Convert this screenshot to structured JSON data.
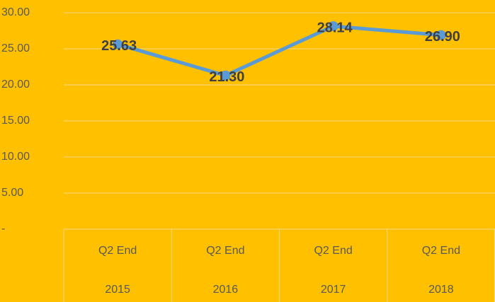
{
  "chart_data": {
    "type": "line",
    "categories": [
      [
        "Q2 End",
        "2015"
      ],
      [
        "Q2 End",
        "2016"
      ],
      [
        "Q2 End",
        "2017"
      ],
      [
        "Q2 End",
        "2018"
      ]
    ],
    "series": [
      {
        "color": "#5b9bd5",
        "values": [
          25.63,
          21.3,
          28.14,
          26.9
        ],
        "value_labels": [
          "25.63",
          "21.30",
          "28.14",
          "26.90"
        ]
      }
    ],
    "ylim": [
      0,
      30
    ],
    "yticks": [
      {
        "value": 0,
        "label": "-"
      },
      {
        "value": 5,
        "label": "5.00"
      },
      {
        "value": 10,
        "label": "10.00"
      },
      {
        "value": 15,
        "label": "15.00"
      },
      {
        "value": 20,
        "label": "20.00"
      },
      {
        "value": 25,
        "label": "25.00"
      },
      {
        "value": 30,
        "label": "30.00"
      }
    ],
    "grid": true,
    "background": "#ffc000"
  }
}
